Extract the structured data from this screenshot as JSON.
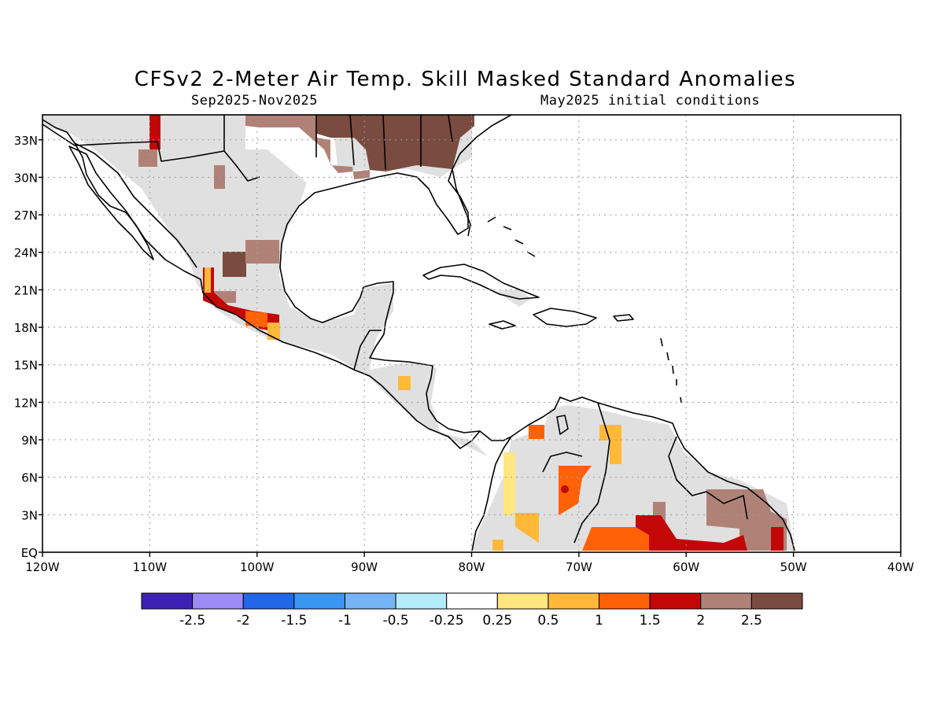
{
  "header": {
    "title": "CFSv2 2-Meter Air Temp. Skill Masked Standard Anomalies",
    "period": "Sep2025-Nov2025",
    "initial_conditions": "May2025 initial conditions"
  },
  "map": {
    "lon_labels": [
      "120W",
      "110W",
      "100W",
      "90W",
      "80W",
      "70W",
      "60W",
      "50W",
      "40W"
    ],
    "lat_labels": [
      "EQ",
      "3N",
      "6N",
      "9N",
      "12N",
      "15N",
      "18N",
      "21N",
      "24N",
      "27N",
      "30N",
      "33N"
    ],
    "grid": "dotted",
    "colors": {
      "no_skill_mask": "#e0e0e0",
      "land_outline": "#000000",
      "ocean": "#ffffff"
    }
  },
  "colorbar": {
    "labels": [
      "-2.5",
      "-2",
      "-1.5",
      "-1",
      "-0.5",
      "-0.25",
      "0.25",
      "0.5",
      "1",
      "1.5",
      "2",
      "2.5"
    ],
    "colors": [
      "#3c22b4",
      "#9e8cf6",
      "#2167e6",
      "#3a96f0",
      "#76b4f5",
      "#b4ecfa",
      "#ffffff",
      "#ffe680",
      "#ffb93a",
      "#ff6107",
      "#c30707",
      "#b08277",
      "#7a4b40"
    ]
  }
}
